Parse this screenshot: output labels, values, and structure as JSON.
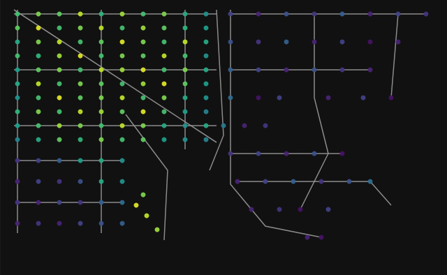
{
  "chart_data": {
    "type": "network",
    "xlim": [
      0,
      640
    ],
    "ylim": [
      0,
      394
    ],
    "tick_labels": false,
    "grid": false,
    "color_range": [
      0,
      1
    ],
    "nodes": [
      [
        25,
        374,
        0.7
      ],
      [
        55,
        374,
        0.8
      ],
      [
        85,
        374,
        0.75
      ],
      [
        115,
        374,
        0.9
      ],
      [
        145,
        374,
        0.65
      ],
      [
        175,
        374,
        0.85
      ],
      [
        205,
        374,
        0.7
      ],
      [
        235,
        374,
        0.8
      ],
      [
        265,
        374,
        0.6
      ],
      [
        295,
        374,
        0.5
      ],
      [
        25,
        354,
        0.75
      ],
      [
        55,
        354,
        0.95
      ],
      [
        85,
        354,
        0.7
      ],
      [
        115,
        354,
        0.8
      ],
      [
        145,
        354,
        0.9
      ],
      [
        175,
        354,
        0.7
      ],
      [
        205,
        354,
        0.85
      ],
      [
        235,
        354,
        0.75
      ],
      [
        265,
        354,
        0.65
      ],
      [
        295,
        354,
        0.55
      ],
      [
        25,
        334,
        0.6
      ],
      [
        55,
        334,
        0.8
      ],
      [
        85,
        334,
        0.9
      ],
      [
        115,
        334,
        0.7
      ],
      [
        145,
        334,
        0.75
      ],
      [
        175,
        334,
        0.95
      ],
      [
        205,
        334,
        0.8
      ],
      [
        235,
        334,
        0.7
      ],
      [
        265,
        334,
        0.9
      ],
      [
        295,
        334,
        0.6
      ],
      [
        25,
        314,
        0.7
      ],
      [
        55,
        314,
        0.65
      ],
      [
        85,
        314,
        0.85
      ],
      [
        115,
        314,
        0.95
      ],
      [
        145,
        314,
        0.7
      ],
      [
        175,
        314,
        0.8
      ],
      [
        205,
        314,
        0.75
      ],
      [
        235,
        314,
        0.9
      ],
      [
        265,
        314,
        0.7
      ],
      [
        295,
        314,
        0.5
      ],
      [
        25,
        294,
        0.55
      ],
      [
        55,
        294,
        0.75
      ],
      [
        85,
        294,
        0.8
      ],
      [
        115,
        294,
        0.7
      ],
      [
        145,
        294,
        0.9
      ],
      [
        175,
        294,
        0.85
      ],
      [
        205,
        294,
        0.95
      ],
      [
        235,
        294,
        0.7
      ],
      [
        265,
        294,
        0.8
      ],
      [
        295,
        294,
        0.6
      ],
      [
        25,
        274,
        0.6
      ],
      [
        55,
        274,
        0.9
      ],
      [
        85,
        274,
        0.7
      ],
      [
        115,
        274,
        0.8
      ],
      [
        145,
        274,
        0.75
      ],
      [
        175,
        274,
        0.7
      ],
      [
        205,
        274,
        0.85
      ],
      [
        235,
        274,
        0.95
      ],
      [
        265,
        274,
        0.75
      ],
      [
        295,
        274,
        0.55
      ],
      [
        25,
        254,
        0.5
      ],
      [
        55,
        254,
        0.7
      ],
      [
        85,
        254,
        0.95
      ],
      [
        115,
        254,
        0.75
      ],
      [
        145,
        254,
        0.8
      ],
      [
        175,
        254,
        0.9
      ],
      [
        205,
        254,
        0.7
      ],
      [
        235,
        254,
        0.8
      ],
      [
        265,
        254,
        0.6
      ],
      [
        295,
        254,
        0.5
      ],
      [
        25,
        234,
        0.65
      ],
      [
        55,
        234,
        0.8
      ],
      [
        85,
        234,
        0.7
      ],
      [
        115,
        234,
        0.9
      ],
      [
        145,
        234,
        0.85
      ],
      [
        175,
        234,
        0.75
      ],
      [
        205,
        234,
        0.95
      ],
      [
        235,
        234,
        0.7
      ],
      [
        265,
        234,
        0.55
      ],
      [
        295,
        234,
        0.45
      ],
      [
        25,
        214,
        0.55
      ],
      [
        55,
        214,
        0.7
      ],
      [
        85,
        214,
        0.85
      ],
      [
        115,
        214,
        0.8
      ],
      [
        145,
        214,
        0.7
      ],
      [
        175,
        214,
        0.9
      ],
      [
        205,
        214,
        0.8
      ],
      [
        235,
        214,
        0.6
      ],
      [
        265,
        214,
        0.5
      ],
      [
        295,
        214,
        0.6
      ],
      [
        25,
        194,
        0.45
      ],
      [
        55,
        194,
        0.6
      ],
      [
        85,
        194,
        0.75
      ],
      [
        115,
        194,
        0.65
      ],
      [
        145,
        194,
        0.8
      ],
      [
        175,
        194,
        0.7
      ],
      [
        205,
        194,
        0.75
      ],
      [
        235,
        194,
        0.55
      ],
      [
        265,
        194,
        0.5
      ],
      [
        295,
        194,
        0.45
      ],
      [
        25,
        164,
        0.15
      ],
      [
        55,
        164,
        0.2
      ],
      [
        85,
        164,
        0.3
      ],
      [
        115,
        164,
        0.55
      ],
      [
        145,
        164,
        0.6
      ],
      [
        175,
        164,
        0.5
      ],
      [
        25,
        134,
        0.1
      ],
      [
        55,
        134,
        0.2
      ],
      [
        85,
        134,
        0.15
      ],
      [
        115,
        134,
        0.25
      ],
      [
        145,
        134,
        0.6
      ],
      [
        175,
        134,
        0.5
      ],
      [
        25,
        104,
        0.15
      ],
      [
        55,
        104,
        0.1
      ],
      [
        85,
        104,
        0.2
      ],
      [
        115,
        104,
        0.15
      ],
      [
        145,
        104,
        0.3
      ],
      [
        175,
        104,
        0.35
      ],
      [
        25,
        74,
        0.1
      ],
      [
        55,
        74,
        0.15
      ],
      [
        85,
        74,
        0.1
      ],
      [
        115,
        74,
        0.2
      ],
      [
        145,
        74,
        0.25
      ],
      [
        175,
        74,
        0.3
      ],
      [
        195,
        100,
        0.95
      ],
      [
        210,
        85,
        0.9
      ],
      [
        225,
        65,
        0.85
      ],
      [
        205,
        115,
        0.8
      ],
      [
        330,
        374,
        0.2
      ],
      [
        370,
        374,
        0.1
      ],
      [
        410,
        374,
        0.25
      ],
      [
        450,
        374,
        0.15
      ],
      [
        490,
        374,
        0.3
      ],
      [
        530,
        374,
        0.1
      ],
      [
        570,
        374,
        0.2
      ],
      [
        610,
        374,
        0.15
      ],
      [
        330,
        334,
        0.25
      ],
      [
        370,
        334,
        0.15
      ],
      [
        410,
        334,
        0.3
      ],
      [
        450,
        334,
        0.1
      ],
      [
        490,
        334,
        0.2
      ],
      [
        530,
        334,
        0.05
      ],
      [
        570,
        334,
        0.1
      ],
      [
        330,
        294,
        0.3
      ],
      [
        370,
        294,
        0.2
      ],
      [
        410,
        294,
        0.1
      ],
      [
        450,
        294,
        0.25
      ],
      [
        490,
        294,
        0.15
      ],
      [
        530,
        294,
        0.1
      ],
      [
        330,
        254,
        0.35
      ],
      [
        370,
        254,
        0.05
      ],
      [
        400,
        254,
        0.2
      ],
      [
        470,
        254,
        0.1
      ],
      [
        520,
        254,
        0.2
      ],
      [
        560,
        254,
        0.05
      ],
      [
        320,
        214,
        0.4
      ],
      [
        350,
        214,
        0.1
      ],
      [
        380,
        214,
        0.15
      ],
      [
        330,
        174,
        0.15
      ],
      [
        370,
        174,
        0.2
      ],
      [
        410,
        174,
        0.1
      ],
      [
        450,
        174,
        0.25
      ],
      [
        490,
        174,
        0.05
      ],
      [
        340,
        134,
        0.1
      ],
      [
        380,
        134,
        0.2
      ],
      [
        420,
        134,
        0.3
      ],
      [
        460,
        134,
        0.15
      ],
      [
        500,
        134,
        0.25
      ],
      [
        530,
        134,
        0.35
      ],
      [
        360,
        94,
        0.1
      ],
      [
        400,
        94,
        0.15
      ],
      [
        430,
        94,
        0.05
      ],
      [
        470,
        94,
        0.2
      ],
      [
        440,
        54,
        0.1
      ],
      [
        460,
        54,
        0.05
      ]
    ],
    "edges": [
      [
        [
          20,
          374
        ],
        [
          310,
          374
        ]
      ],
      [
        [
          20,
          294
        ],
        [
          310,
          294
        ]
      ],
      [
        [
          20,
          214
        ],
        [
          310,
          214
        ]
      ],
      [
        [
          25,
          380
        ],
        [
          25,
          60
        ]
      ],
      [
        [
          145,
          380
        ],
        [
          145,
          60
        ]
      ],
      [
        [
          265,
          380
        ],
        [
          265,
          180
        ]
      ],
      [
        [
          20,
          380
        ],
        [
          310,
          190
        ]
      ],
      [
        [
          180,
          230
        ],
        [
          240,
          150
        ],
        [
          235,
          50
        ]
      ],
      [
        [
          310,
          380
        ],
        [
          320,
          200
        ],
        [
          300,
          150
        ]
      ],
      [
        [
          330,
          374
        ],
        [
          610,
          374
        ]
      ],
      [
        [
          330,
          294
        ],
        [
          530,
          294
        ]
      ],
      [
        [
          330,
          174
        ],
        [
          490,
          174
        ]
      ],
      [
        [
          340,
          134
        ],
        [
          530,
          134
        ],
        [
          560,
          100
        ]
      ],
      [
        [
          330,
          380
        ],
        [
          330,
          130
        ],
        [
          380,
          70
        ],
        [
          460,
          54
        ]
      ],
      [
        [
          450,
          374
        ],
        [
          450,
          254
        ],
        [
          470,
          174
        ],
        [
          430,
          94
        ]
      ],
      [
        [
          570,
          374
        ],
        [
          560,
          254
        ]
      ],
      [
        [
          25,
          104
        ],
        [
          175,
          104
        ]
      ],
      [
        [
          25,
          164
        ],
        [
          175,
          164
        ]
      ]
    ]
  }
}
